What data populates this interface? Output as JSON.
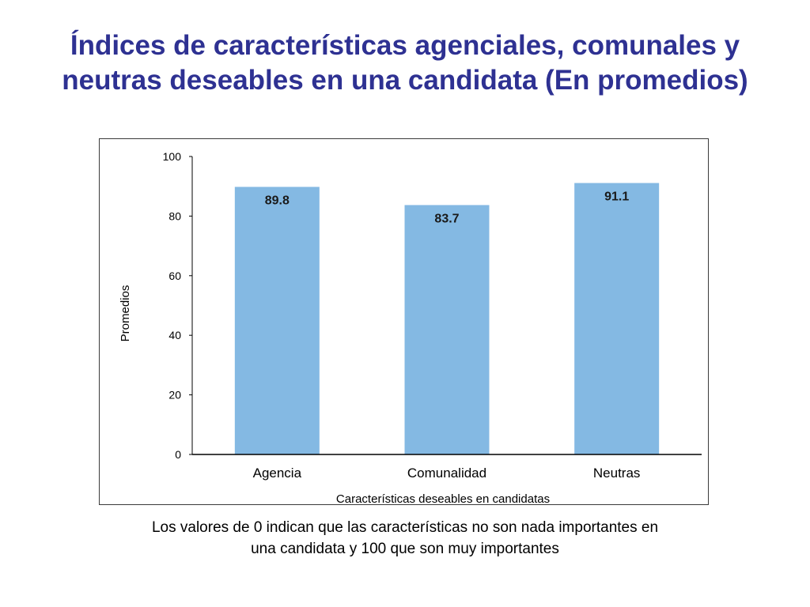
{
  "slide": {
    "title": "Índices de características agenciales, comunales y neutras deseables en una candidata (En promedios)",
    "footnote_line1": "Los valores de 0 indican que las características no son nada importantes en",
    "footnote_line2": "una candidata y 100 que son muy importantes"
  },
  "chart_data": {
    "type": "bar",
    "categories": [
      "Agencia",
      "Comunalidad",
      "Neutras"
    ],
    "values": [
      89.8,
      83.7,
      91.1
    ],
    "data_labels": [
      "89.8",
      "83.7",
      "91.1"
    ],
    "xlabel": "Características deseables en candidatas",
    "ylabel": "Promedios",
    "ylim": [
      0,
      100
    ],
    "yticks": [
      0,
      20,
      40,
      60,
      80,
      100
    ],
    "grid": false,
    "legend": "none",
    "bar_color": "#84b9e3"
  }
}
